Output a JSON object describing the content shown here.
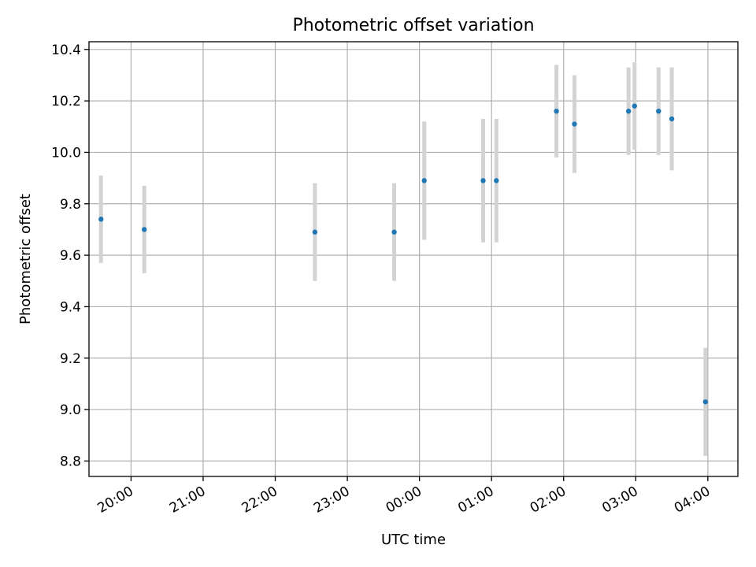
{
  "chart_data": {
    "type": "scatter",
    "title": "Photometric offset variation",
    "xlabel": "UTC time",
    "ylabel": "Photometric offset",
    "x_ticks": [
      "20:00",
      "21:00",
      "22:00",
      "23:00",
      "00:00",
      "01:00",
      "02:00",
      "03:00",
      "04:00"
    ],
    "y_ticks": [
      "8.8",
      "9.0",
      "9.2",
      "9.4",
      "9.6",
      "9.8",
      "10.0",
      "10.2",
      "10.4"
    ],
    "xlim": [
      "19:25",
      "04:25"
    ],
    "ylim": [
      8.74,
      10.43
    ],
    "grid": true,
    "point_color": "#1f77b4",
    "errorbar_color": "#d3d3d3",
    "points": [
      {
        "x": "19:35",
        "y": 9.74,
        "yerr": 0.17
      },
      {
        "x": "20:11",
        "y": 9.7,
        "yerr": 0.17
      },
      {
        "x": "22:33",
        "y": 9.69,
        "yerr": 0.19
      },
      {
        "x": "23:39",
        "y": 9.69,
        "yerr": 0.19
      },
      {
        "x": "00:04",
        "y": 9.89,
        "yerr": 0.23
      },
      {
        "x": "00:53",
        "y": 9.89,
        "yerr": 0.24
      },
      {
        "x": "01:04",
        "y": 9.89,
        "yerr": 0.24
      },
      {
        "x": "01:54",
        "y": 10.16,
        "yerr": 0.18
      },
      {
        "x": "02:09",
        "y": 10.11,
        "yerr": 0.19
      },
      {
        "x": "02:54",
        "y": 10.16,
        "yerr": 0.17
      },
      {
        "x": "02:59",
        "y": 10.18,
        "yerr": 0.17
      },
      {
        "x": "03:19",
        "y": 10.16,
        "yerr": 0.17
      },
      {
        "x": "03:30",
        "y": 10.13,
        "yerr": 0.2
      },
      {
        "x": "03:58",
        "y": 9.03,
        "yerr": 0.21
      }
    ]
  }
}
